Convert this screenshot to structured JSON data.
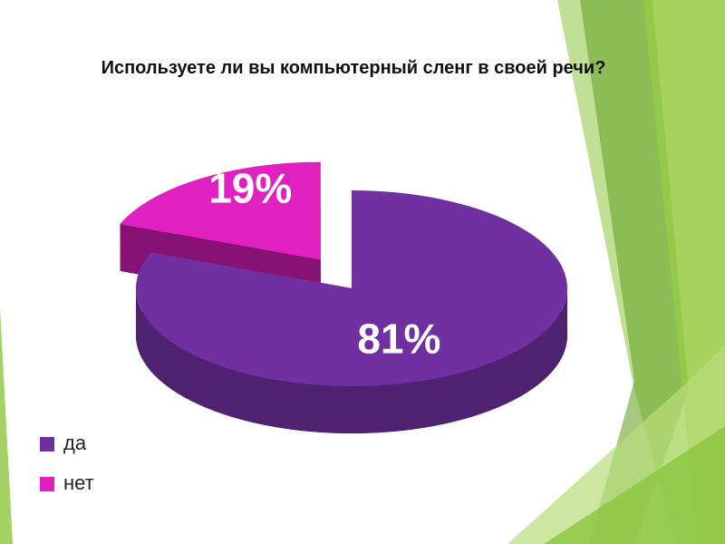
{
  "chart_data": {
    "type": "pie",
    "title": "Используете ли вы компьютерный сленг в своей речи?",
    "categories": [
      "да",
      "нет"
    ],
    "values": [
      81,
      19
    ],
    "value_labels": [
      "81%",
      "19%"
    ],
    "colors": [
      "#7030a0",
      "#e020c0"
    ],
    "legend": "bottom-left"
  }
}
